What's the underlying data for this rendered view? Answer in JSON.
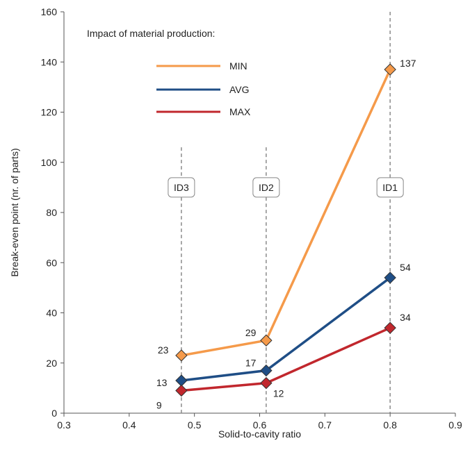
{
  "chart_data": {
    "type": "line",
    "xlabel": "Solid-to-cavity ratio",
    "ylabel": "Break-even point (nr. of parts)",
    "xlim": [
      0.3,
      0.9
    ],
    "ylim": [
      0,
      160
    ],
    "xticks": [
      "0.3",
      "0.4",
      "0.5",
      "0.6",
      "0.7",
      "0.8",
      "0.9"
    ],
    "yticks": [
      "0",
      "20",
      "40",
      "60",
      "80",
      "100",
      "120",
      "140",
      "160"
    ],
    "grid": false,
    "legend_title": "Impact of material production:",
    "legend_position": "top-left",
    "x": [
      0.48,
      0.61,
      0.8
    ],
    "series": [
      {
        "name": "MIN",
        "color": "#F59A4A",
        "values": [
          23,
          29,
          137
        ],
        "labels": [
          "23",
          "29",
          "137"
        ]
      },
      {
        "name": "AVG",
        "color": "#1F4E86",
        "values": [
          13,
          17,
          54
        ],
        "labels": [
          "13",
          "17",
          "54"
        ]
      },
      {
        "name": "MAX",
        "color": "#C1272D",
        "values": [
          9,
          12,
          34
        ],
        "labels": [
          "9",
          "12",
          "34"
        ]
      }
    ],
    "reference_lines": [
      {
        "x": 0.48,
        "label": "ID3"
      },
      {
        "x": 0.61,
        "label": "ID2"
      },
      {
        "x": 0.8,
        "label": "ID1"
      }
    ]
  }
}
